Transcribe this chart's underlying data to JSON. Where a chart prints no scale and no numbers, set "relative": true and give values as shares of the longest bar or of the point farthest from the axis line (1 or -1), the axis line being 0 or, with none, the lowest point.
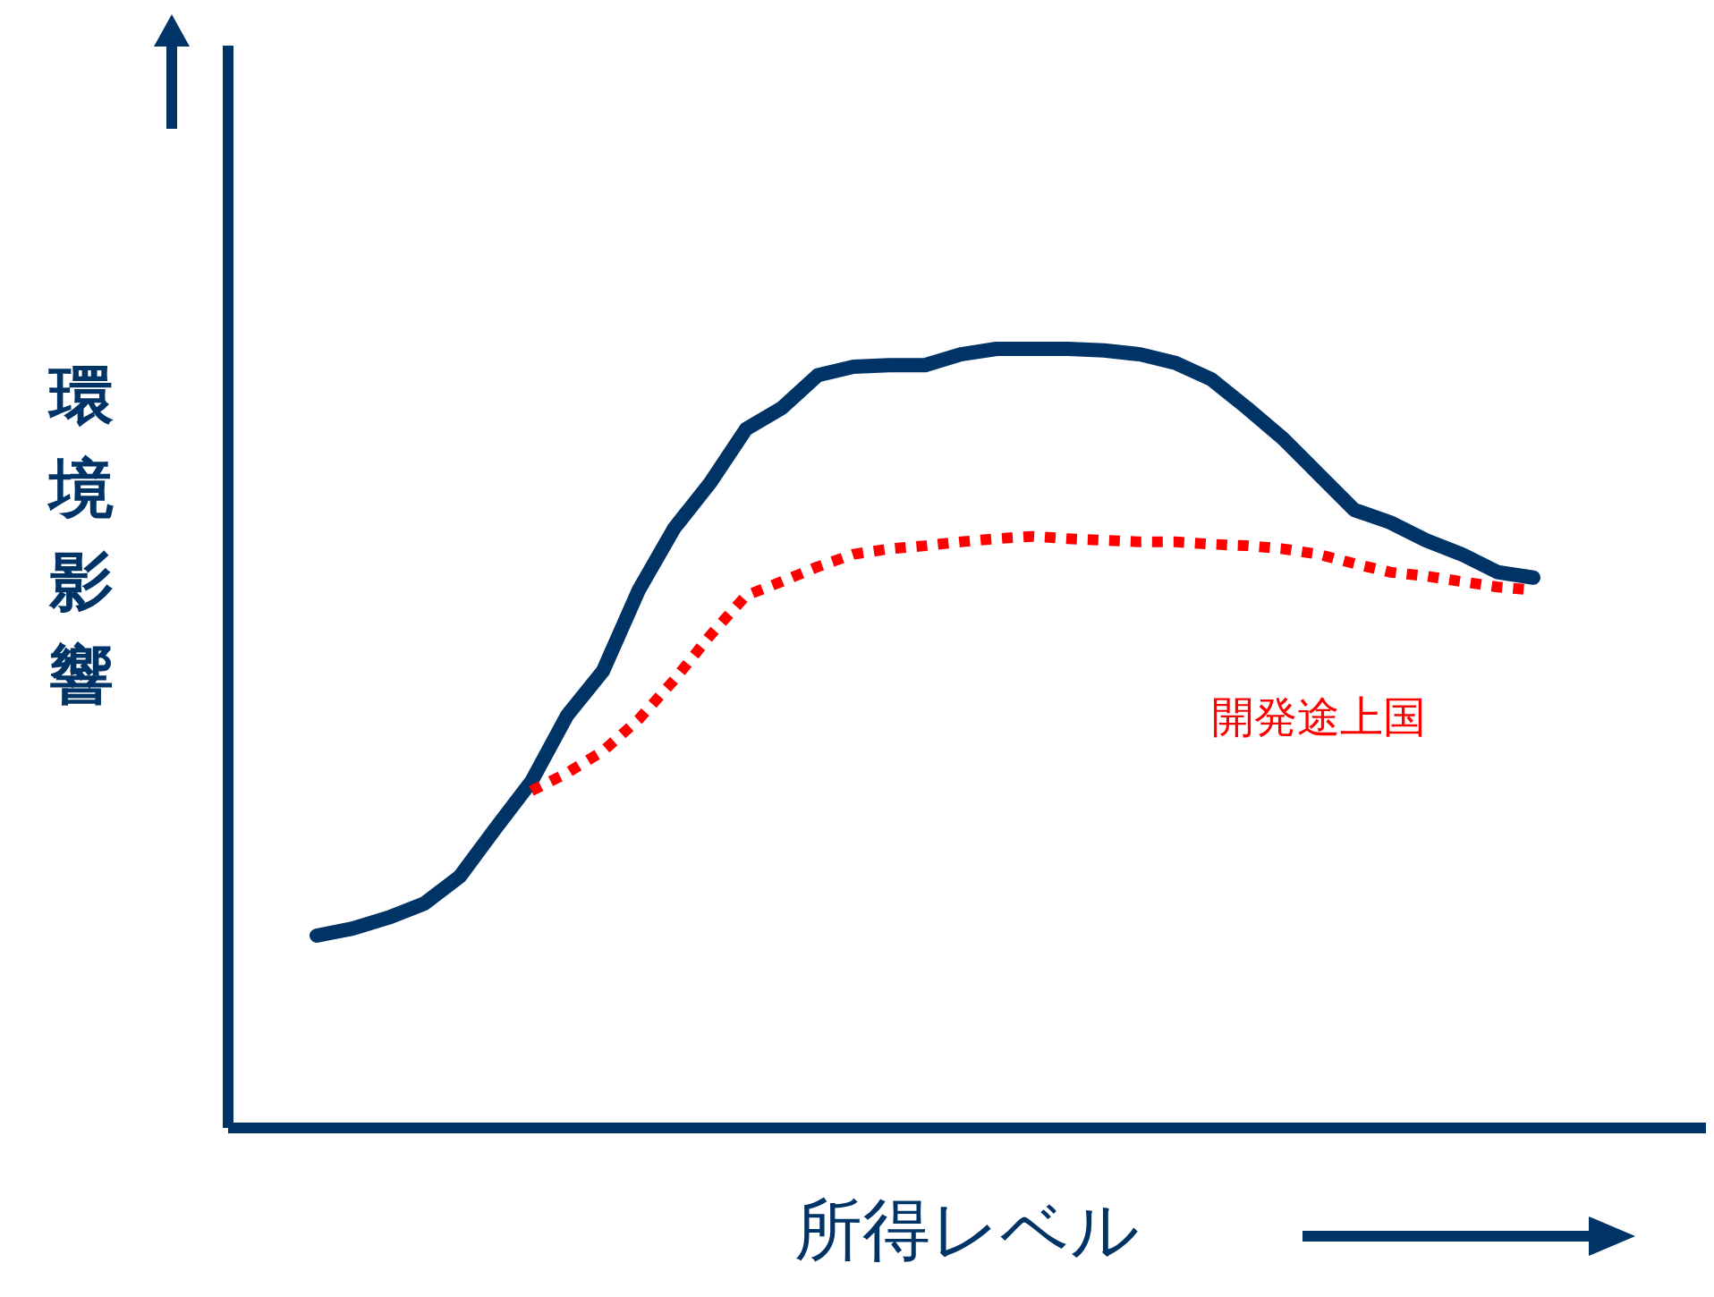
{
  "chart_data": {
    "type": "line",
    "relative": true,
    "xlabel": "所得レベル",
    "ylabel": "環境影響",
    "marker": "none",
    "grid": false,
    "legend": false,
    "categories": [
      null,
      null,
      null,
      null,
      null,
      null,
      null,
      null,
      null,
      null,
      null,
      null,
      null,
      null,
      null,
      null,
      null,
      null,
      null,
      null,
      null,
      null,
      null,
      null,
      null,
      null,
      null,
      null,
      null,
      null,
      null,
      null,
      null,
      null,
      null
    ],
    "series": [
      {
        "color": "#003366",
        "line_style": "solid",
        "values": [
          0.246,
          0.255,
          0.269,
          0.287,
          0.322,
          0.384,
          0.444,
          0.529,
          0.586,
          0.69,
          0.77,
          0.828,
          0.897,
          0.924,
          0.966,
          0.977,
          0.979,
          0.979,
          0.993,
          1,
          1,
          1,
          0.998,
          0.993,
          0.982,
          0.961,
          0.924,
          0.885,
          0.839,
          0.793,
          0.777,
          0.754,
          0.736,
          0.713,
          0.706
        ]
      },
      {
        "name": "開発途上国",
        "color": "#ff0000",
        "line_style": "dotted",
        "values": [
          null,
          null,
          null,
          null,
          null,
          null,
          0.432,
          0.455,
          0.483,
          0.524,
          0.575,
          0.632,
          0.683,
          0.701,
          0.72,
          0.736,
          0.743,
          0.747,
          0.752,
          0.756,
          0.759,
          0.756,
          0.754,
          0.752,
          0.752,
          0.749,
          0.747,
          0.743,
          0.736,
          0.724,
          0.713,
          0.708,
          0.701,
          0.694,
          0.69
        ]
      }
    ]
  }
}
